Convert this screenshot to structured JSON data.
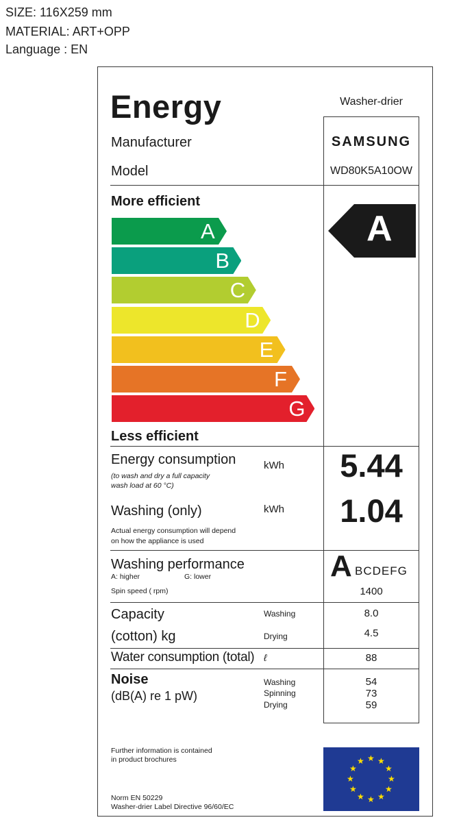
{
  "spec": {
    "size": "SIZE: 116X259 mm",
    "material": "MATERIAL: ART+OPP",
    "language": "Language : EN"
  },
  "label": {
    "title": "Energy",
    "appliance_type": "Washer-drier",
    "manufacturer_label": "Manufacturer",
    "manufacturer_value": "SAMSUNG",
    "model_label": "Model",
    "model_value": "WD80K5A10OW",
    "more_efficient": "More efficient",
    "less_efficient": "Less efficient",
    "classes": [
      {
        "letter": "A",
        "color": "#0b9b4c"
      },
      {
        "letter": "B",
        "color": "#0aa07d"
      },
      {
        "letter": "C",
        "color": "#b2cd30"
      },
      {
        "letter": "D",
        "color": "#ede62b"
      },
      {
        "letter": "E",
        "color": "#f2c01e"
      },
      {
        "letter": "F",
        "color": "#e67426"
      },
      {
        "letter": "G",
        "color": "#e3202c"
      }
    ],
    "rating": "A",
    "energy": {
      "label": "Energy consumption",
      "unit": "kWh",
      "note_line1": "(to wash and dry a full capacity",
      "note_line2": "wash load at 60 °C)",
      "value": "5.44"
    },
    "washing_only": {
      "label": "Washing (only)",
      "unit": "kWh",
      "note_line1": "Actual energy consumption will depend",
      "note_line2": "on how the appliance is used",
      "value": "1.04"
    },
    "washing_performance": {
      "label": "Washing performance",
      "higher": "A: higher",
      "lower": "G: lower",
      "big_letter": "A",
      "scale_rest": "BCDEFG",
      "spin_label": "Spin speed ( rpm)",
      "spin_value": "1400"
    },
    "capacity": {
      "label1": "Capacity",
      "label2": "(cotton) kg",
      "washing_label": "Washing",
      "drying_label": "Drying",
      "washing_value": "8.0",
      "drying_value": "4.5"
    },
    "water": {
      "label": "Water consumption (total)",
      "unit": "ℓ",
      "value": "88"
    },
    "noise": {
      "label": "Noise",
      "sub": "(dB(A) re 1 pW)",
      "washing_label": "Washing",
      "spinning_label": "Spinning",
      "drying_label": "Drying",
      "washing_value": "54",
      "spinning_value": "73",
      "drying_value": "59"
    },
    "further_line1": "Further information is contained",
    "further_line2": "in product brochures",
    "norm": "Norm EN 50229",
    "directive": "Washer-drier Label Directive 96/60/EC",
    "eu_flag_color": "#1f3a93",
    "eu_star_color": "#ffde00",
    "eu_flag_icon": "eu-flag-icon"
  }
}
